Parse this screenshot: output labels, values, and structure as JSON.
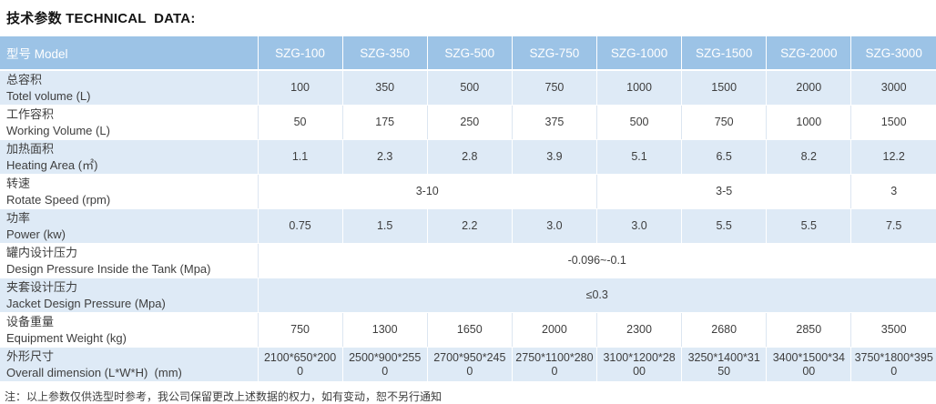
{
  "title": "技术参数 TECHNICAL  DATA:",
  "colors": {
    "header_bg": "#9CC3E6",
    "header_text": "#FFFFFF",
    "tint_bg": "#DEEAF6",
    "white_bg": "#FFFFFF",
    "body_text": "#3E3E3E",
    "border_on_white": "#DCE6F1",
    "border_on_tint": "#FFFFFF"
  },
  "table": {
    "header": {
      "label": "型号 Model",
      "models": [
        "SZG-100",
        "SZG-350",
        "SZG-500",
        "SZG-750",
        "SZG-1000",
        "SZG-1500",
        "SZG-2000",
        "SZG-3000"
      ]
    },
    "rows": [
      {
        "label_zh": "总容积",
        "label_en": "Totel volume (L)",
        "tint": true,
        "values": [
          "100",
          "350",
          "500",
          "750",
          "1000",
          "1500",
          "2000",
          "3000"
        ]
      },
      {
        "label_zh": "工作容积",
        "label_en": "Working Volume (L)",
        "tint": false,
        "values": [
          "50",
          "175",
          "250",
          "375",
          "500",
          "750",
          "1000",
          "1500"
        ]
      },
      {
        "label_zh": "加热面积",
        "label_en": "Heating Area (㎡)",
        "tint": true,
        "values": [
          "1.1",
          "2.3",
          "2.8",
          "3.9",
          "5.1",
          "6.5",
          "8.2",
          "12.2"
        ]
      },
      {
        "label_zh": "转速",
        "label_en": "Rotate Speed (rpm)",
        "tint": false,
        "spans": [
          {
            "value": "3-10",
            "cols": 4
          },
          {
            "value": "3-5",
            "cols": 3
          },
          {
            "value": "3",
            "cols": 1
          }
        ]
      },
      {
        "label_zh": "功率",
        "label_en": "Power (kw)",
        "tint": true,
        "values": [
          "0.75",
          "1.5",
          "2.2",
          "3.0",
          "3.0",
          "5.5",
          "5.5",
          "7.5"
        ]
      },
      {
        "label_zh": "罐内设计压力",
        "label_en": "Design Pressure Inside the Tank (Mpa)",
        "tint": false,
        "spans": [
          {
            "value": "-0.096~-0.1",
            "cols": 8
          }
        ]
      },
      {
        "label_zh": "夹套设计压力",
        "label_en": "Jacket Design Pressure (Mpa)",
        "tint": true,
        "spans": [
          {
            "value": "≤0.3",
            "cols": 8
          }
        ]
      },
      {
        "label_zh": "设备重量",
        "label_en": "Equipment Weight (kg)",
        "tint": false,
        "values": [
          "750",
          "1300",
          "1650",
          "2000",
          "2300",
          "2680",
          "2850",
          "3500"
        ]
      },
      {
        "label_zh": "外形尺寸",
        "label_en": "Overall dimension (L*W*H)  (mm)",
        "tint": true,
        "values": [
          "2100*650*2000",
          "2500*900*2550",
          "2700*950*2450",
          "2750*1100*2800",
          "3100*1200*2800",
          "3250*1400*3150",
          "3400*1500*3400",
          "3750*1800*3950"
        ]
      }
    ]
  },
  "footnote": "注：以上参数仅供选型时参考，我公司保留更改上述数据的权力，如有变动，恕不另行通知"
}
